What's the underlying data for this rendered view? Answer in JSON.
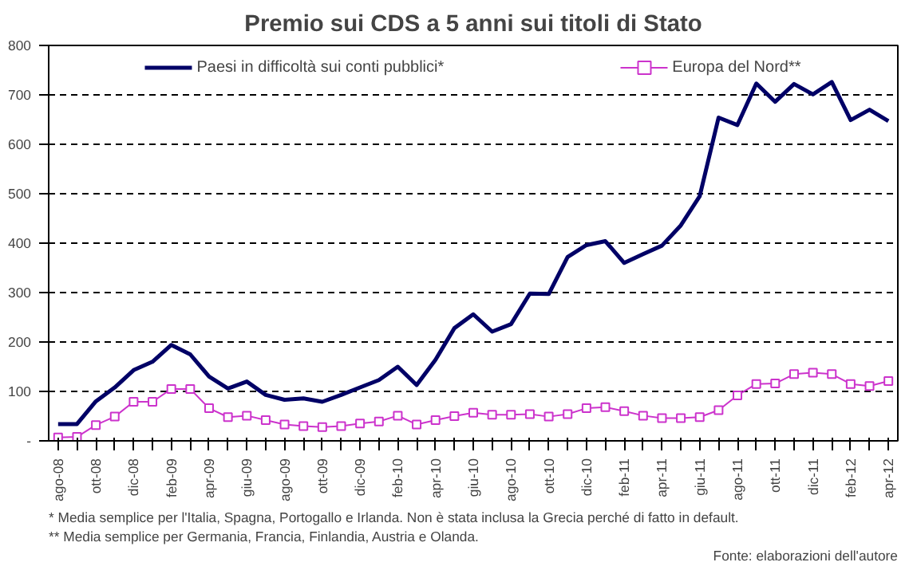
{
  "chart_data": {
    "type": "line",
    "title": "Premio sui CDS a 5 anni sui titoli di Stato",
    "categories": [
      "ago-08",
      null,
      "ott-08",
      null,
      "dic-08",
      null,
      "feb-09",
      null,
      "apr-09",
      null,
      "giu-09",
      null,
      "ago-09",
      null,
      "ott-09",
      null,
      "dic-09",
      null,
      "feb-10",
      null,
      "apr-10",
      null,
      "giu-10",
      null,
      "ago-10",
      null,
      "ott-10",
      null,
      "dic-10",
      null,
      "feb-11",
      null,
      "apr-11",
      null,
      "giu-11",
      null,
      "ago-11",
      null,
      "ott-11",
      null,
      "dic-11",
      null,
      "feb-12",
      null,
      "apr-12"
    ],
    "series": [
      {
        "name": "Paesi in difficoltà sui conti pubblici*",
        "color": "#000066",
        "marker": "none",
        "values": [
          34,
          34,
          80,
          108,
          143,
          160,
          194,
          175,
          130,
          106,
          120,
          93,
          83,
          86,
          79,
          93,
          108,
          123,
          150,
          113,
          164,
          228,
          256,
          221,
          236,
          298,
          297,
          372,
          396,
          404,
          360,
          378,
          395,
          436,
          495,
          654,
          639,
          723,
          686,
          722,
          701,
          726,
          649,
          670,
          647
        ]
      },
      {
        "name": "Europa del Nord**",
        "color": "#cc33cc",
        "marker": "square",
        "values": [
          7,
          8,
          32,
          49,
          79,
          79,
          105,
          105,
          66,
          48,
          51,
          42,
          33,
          30,
          28,
          30,
          35,
          39,
          51,
          33,
          42,
          50,
          57,
          53,
          53,
          54,
          49,
          54,
          66,
          68,
          60,
          51,
          46,
          46,
          48,
          62,
          92,
          115,
          116,
          135,
          138,
          135,
          115,
          111,
          121
        ]
      }
    ],
    "ylim": [
      0,
      800
    ],
    "yticks": [
      {
        "value": 0,
        "label": "-"
      },
      100,
      200,
      300,
      400,
      500,
      600,
      700,
      800
    ],
    "grid": "y",
    "line_style": "solid",
    "legend": "top",
    "annotations": [
      "* Media semplice per l'Italia, Spagna, Portogallo e Irlanda. Non è stata inclusa la Grecia perché di fatto in default.",
      "** Media semplice per Germania, Francia, Finlandia, Austria e Olanda.",
      "Fonte: elaborazioni dell'autore"
    ]
  }
}
